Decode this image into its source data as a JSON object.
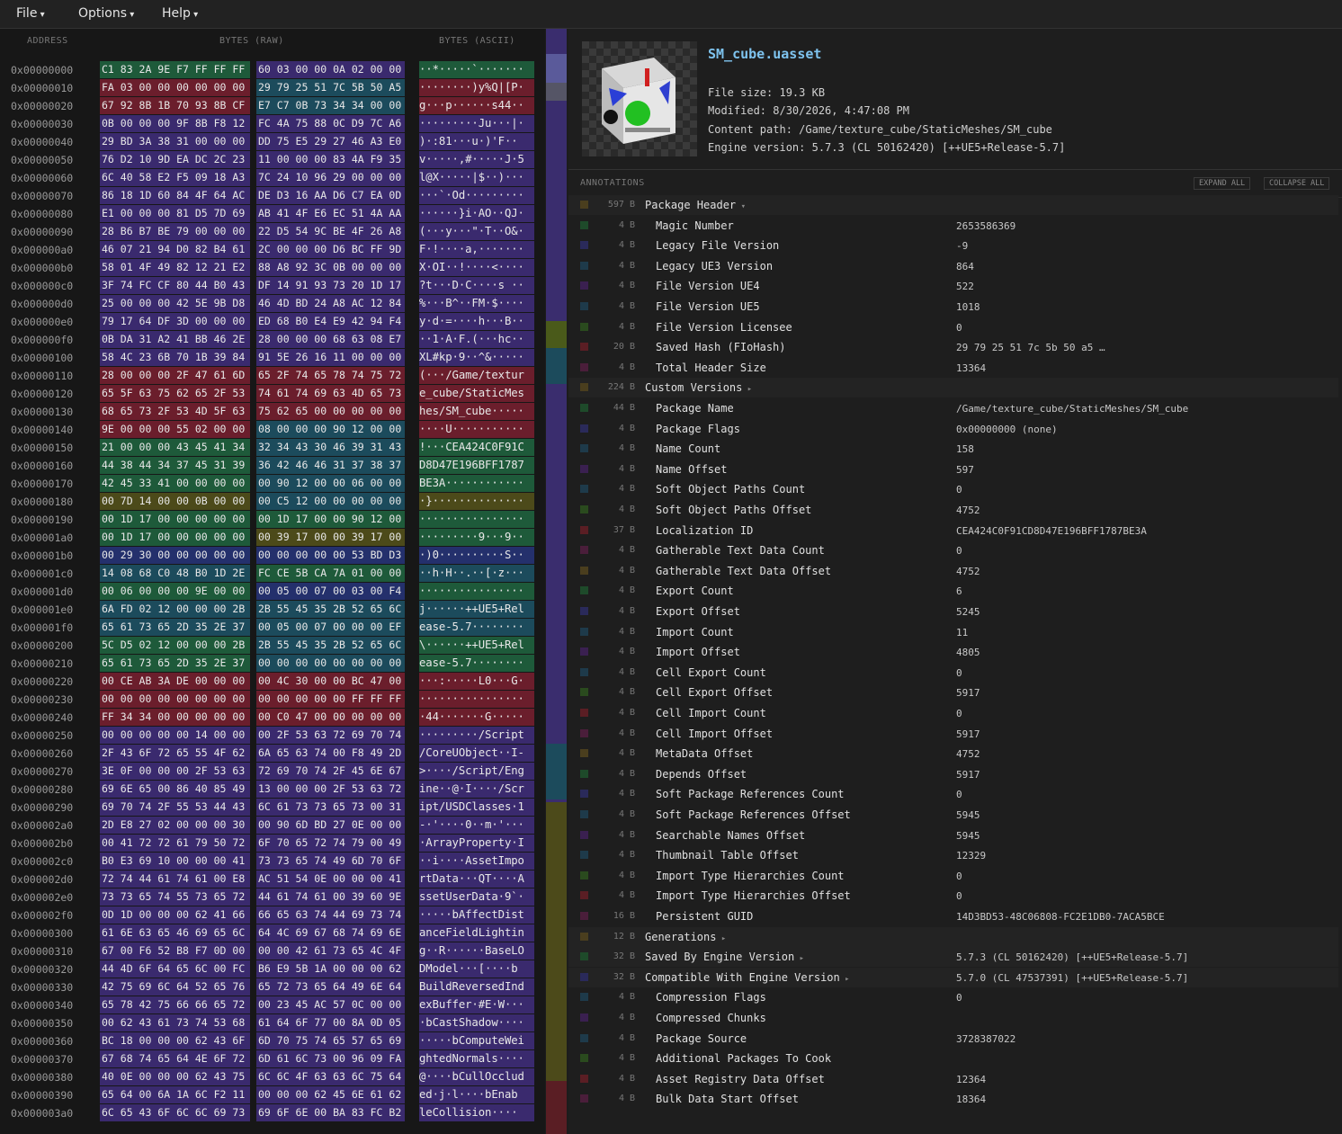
{
  "menu": [
    "File",
    "Options",
    "Help"
  ],
  "hex": {
    "headers": [
      "ADDRESS",
      "BYTES (RAW)",
      "BYTES (ASCII)"
    ],
    "rows": [
      [
        "0x00000000",
        "C1 83 2A 9E F7 FF FF FF",
        "60 03 00 00 0A 02 00 00",
        "··*·····`·······"
      ],
      [
        "0x00000010",
        "FA 03 00 00 00 00 00 00",
        "29 79 25 51 7C 5B 50 A5",
        "········)y%Q|[P·"
      ],
      [
        "0x00000020",
        "67 92 8B 1B 70 93 8B CF",
        "E7 C7 0B 73 34 34 00 00",
        "g···p······s44··"
      ],
      [
        "0x00000030",
        "0B 00 00 00 9F 8B F8 12",
        "FC 4A 75 88 0C D9 7C A6",
        "·········Ju···|·"
      ],
      [
        "0x00000040",
        "29 BD 3A 38 31 00 00 00",
        "DD 75 E5 29 27 46 A3 E0",
        ")·:81···u·)'F··"
      ],
      [
        "0x00000050",
        "76 D2 10 9D EA DC 2C 23",
        "11 00 00 00 83 4A F9 35",
        "v·····,#·····J·5"
      ],
      [
        "0x00000060",
        "6C 40 58 E2 F5 09 18 A3",
        "7C 24 10 96 29 00 00 00",
        "l@X·····|$··)···"
      ],
      [
        "0x00000070",
        "86 18 1D 60 84 4F 64 AC",
        "DE D3 16 AA D6 C7 EA 0D",
        "···`·Od·········"
      ],
      [
        "0x00000080",
        "E1 00 00 00 81 D5 7D 69",
        "AB 41 4F E6 EC 51 4A AA",
        "······}i·AO··QJ·"
      ],
      [
        "0x00000090",
        "28 B6 B7 BE 79 00 00 00",
        "22 D5 54 9C BE 4F 26 A8",
        "(···y···\"·T··O&·"
      ],
      [
        "0x000000a0",
        "46 07 21 94 D0 82 B4 61",
        "2C 00 00 00 D6 BC FF 9D",
        "F·!····a,·······"
      ],
      [
        "0x000000b0",
        "58 01 4F 49 82 12 21 E2",
        "88 A8 92 3C 0B 00 00 00",
        "X·OI··!····<····"
      ],
      [
        "0x000000c0",
        "3F 74 FC CF 80 44 B0 43",
        "DF 14 91 93 73 20 1D 17",
        "?t···D·C····s ··"
      ],
      [
        "0x000000d0",
        "25 00 00 00 42 5E 9B D8",
        "46 4D BD 24 A8 AC 12 84",
        "%···B^··FM·$····"
      ],
      [
        "0x000000e0",
        "79 17 64 DF 3D 00 00 00",
        "ED 68 B0 E4 E9 42 94 F4",
        "y·d·=····h···B··"
      ],
      [
        "0x000000f0",
        "0B DA 31 A2 41 BB 46 2E",
        "28 00 00 00 68 63 08 E7",
        "··1·A·F.(···hc··"
      ],
      [
        "0x00000100",
        "58 4C 23 6B 70 1B 39 84",
        "91 5E 26 16 11 00 00 00",
        "XL#kp·9··^&·····"
      ],
      [
        "0x00000110",
        "28 00 00 00 2F 47 61 6D",
        "65 2F 74 65 78 74 75 72",
        "(···/Game/textur"
      ],
      [
        "0x00000120",
        "65 5F 63 75 62 65 2F 53",
        "74 61 74 69 63 4D 65 73",
        "e_cube/StaticMes"
      ],
      [
        "0x00000130",
        "68 65 73 2F 53 4D 5F 63",
        "75 62 65 00 00 00 00 00",
        "hes/SM_cube·····"
      ],
      [
        "0x00000140",
        "9E 00 00 00 55 02 00 00",
        "08 00 00 00 90 12 00 00",
        "····U···········"
      ],
      [
        "0x00000150",
        "21 00 00 00 43 45 41 34",
        "32 34 43 30 46 39 31 43",
        "!···CEA424C0F91C"
      ],
      [
        "0x00000160",
        "44 38 44 34 37 45 31 39",
        "36 42 46 46 31 37 38 37",
        "D8D47E196BFF1787"
      ],
      [
        "0x00000170",
        "42 45 33 41 00 00 00 00",
        "00 90 12 00 00 06 00 00",
        "BE3A············"
      ],
      [
        "0x00000180",
        "00 7D 14 00 00 0B 00 00",
        "00 C5 12 00 00 00 00 00",
        "·}··············"
      ],
      [
        "0x00000190",
        "00 1D 17 00 00 00 00 00",
        "00 1D 17 00 00 90 12 00",
        "················"
      ],
      [
        "0x000001a0",
        "00 1D 17 00 00 00 00 00",
        "00 39 17 00 00 39 17 00",
        "·········9···9··"
      ],
      [
        "0x000001b0",
        "00 29 30 00 00 00 00 00",
        "00 00 00 00 00 53 BD D3",
        "·)0··········S··"
      ],
      [
        "0x000001c0",
        "14 08 68 C0 48 B0 1D 2E",
        "FC CE 5B CA 7A 01 00 00",
        "··h·H··.··[·z···"
      ],
      [
        "0x000001d0",
        "00 06 00 00 00 9E 00 00",
        "00 05 00 07 00 03 00 F4",
        "················"
      ],
      [
        "0x000001e0",
        "6A FD 02 12 00 00 00 2B",
        "2B 55 45 35 2B 52 65 6C",
        "j······++UE5+Rel"
      ],
      [
        "0x000001f0",
        "65 61 73 65 2D 35 2E 37",
        "00 05 00 07 00 00 00 EF",
        "ease-5.7········"
      ],
      [
        "0x00000200",
        "5C D5 02 12 00 00 00 2B",
        "2B 55 45 35 2B 52 65 6C",
        "\\······++UE5+Rel"
      ],
      [
        "0x00000210",
        "65 61 73 65 2D 35 2E 37",
        "00 00 00 00 00 00 00 00",
        "ease-5.7········"
      ],
      [
        "0x00000220",
        "00 CE AB 3A DE 00 00 00",
        "00 4C 30 00 00 BC 47 00",
        "···:·····L0···G·"
      ],
      [
        "0x00000230",
        "00 00 00 00 00 00 00 00",
        "00 00 00 00 00 FF FF FF",
        "················"
      ],
      [
        "0x00000240",
        "FF 34 34 00 00 00 00 00",
        "00 C0 47 00 00 00 00 00",
        "·44·······G·····"
      ],
      [
        "0x00000250",
        "00 00 00 00 00 14 00 00",
        "00 2F 53 63 72 69 70 74",
        "·········/Script"
      ],
      [
        "0x00000260",
        "2F 43 6F 72 65 55 4F 62",
        "6A 65 63 74 00 F8 49 2D",
        "/CoreUObject··I-"
      ],
      [
        "0x00000270",
        "3E 0F 00 00 00 2F 53 63",
        "72 69 70 74 2F 45 6E 67",
        ">····/Script/Eng"
      ],
      [
        "0x00000280",
        "69 6E 65 00 86 40 85 49",
        "13 00 00 00 2F 53 63 72",
        "ine··@·I····/Scr"
      ],
      [
        "0x00000290",
        "69 70 74 2F 55 53 44 43",
        "6C 61 73 73 65 73 00 31",
        "ipt/USDClasses·1"
      ],
      [
        "0x000002a0",
        "2D E8 27 02 00 00 00 30",
        "00 90 6D BD 27 0E 00 00",
        "-·'····0··m·'···"
      ],
      [
        "0x000002b0",
        "00 41 72 72 61 79 50 72",
        "6F 70 65 72 74 79 00 49",
        "·ArrayProperty·I"
      ],
      [
        "0x000002c0",
        "B0 E3 69 10 00 00 00 41",
        "73 73 65 74 49 6D 70 6F",
        "··i····AssetImpo"
      ],
      [
        "0x000002d0",
        "72 74 44 61 74 61 00 E8",
        "AC 51 54 0E 00 00 00 41",
        "rtData···QT····A"
      ],
      [
        "0x000002e0",
        "73 73 65 74 55 73 65 72",
        "44 61 74 61 00 39 60 9E",
        "ssetUserData·9`·"
      ],
      [
        "0x000002f0",
        "0D 1D 00 00 00 62 41 66",
        "66 65 63 74 44 69 73 74",
        "·····bAffectDist"
      ],
      [
        "0x00000300",
        "61 6E 63 65 46 69 65 6C",
        "64 4C 69 67 68 74 69 6E",
        "anceFieldLightin"
      ],
      [
        "0x00000310",
        "67 00 F6 52 B8 F7 0D 00",
        "00 00 42 61 73 65 4C 4F",
        "g··R······BaseLO"
      ],
      [
        "0x00000320",
        "44 4D 6F 64 65 6C 00 FC",
        "B6 E9 5B 1A 00 00 00 62",
        "DModel···[····b"
      ],
      [
        "0x00000330",
        "42 75 69 6C 64 52 65 76",
        "65 72 73 65 64 49 6E 64",
        "BuildReversedInd"
      ],
      [
        "0x00000340",
        "65 78 42 75 66 66 65 72",
        "00 23 45 AC 57 0C 00 00",
        "exBuffer·#E·W···"
      ],
      [
        "0x00000350",
        "00 62 43 61 73 74 53 68",
        "61 64 6F 77 00 8A 0D 05",
        "·bCastShadow····"
      ],
      [
        "0x00000360",
        "BC 18 00 00 00 62 43 6F",
        "6D 70 75 74 65 57 65 69",
        "·····bComputeWei"
      ],
      [
        "0x00000370",
        "67 68 74 65 64 4E 6F 72",
        "6D 61 6C 73 00 96 09 FA",
        "ghtedNormals····"
      ],
      [
        "0x00000380",
        "40 0E 00 00 00 62 43 75",
        "6C 6C 4F 63 63 6C 75 64",
        "@····bCullOcclud"
      ],
      [
        "0x00000390",
        "65 64 00 6A 1A 6C F2 11",
        "00 00 00 62 45 6E 61 62",
        "ed·j·l····bEnab"
      ],
      [
        "0x000003a0",
        "6C 65 43 6F 6C 6C 69 73",
        "69 6F 6E 00 BA 83 FC B2",
        "leCollision····"
      ]
    ]
  },
  "file": {
    "name": "SM_cube.uasset",
    "info": [
      "File size: 19.3 KB",
      "Modified: 8/30/2026, 4:47:08 PM",
      "Content path: /Game/texture_cube/StaticMeshes/SM_cube",
      "Engine version: 5.7.3 (CL 50162420) [++UE5+Release-5.7]"
    ]
  },
  "annotations": {
    "title": "ANNOTATIONS",
    "buttons": [
      "EXPAND ALL",
      "COLLAPSE ALL"
    ],
    "rows": [
      {
        "size": "597 B",
        "name": "Package Header",
        "toggle": "open"
      },
      {
        "size": "4 B",
        "name": "Magic Number",
        "value": "2653586369"
      },
      {
        "size": "4 B",
        "name": "Legacy File Version",
        "value": "-9"
      },
      {
        "size": "4 B",
        "name": "Legacy UE3 Version",
        "value": "864"
      },
      {
        "size": "4 B",
        "name": "File Version UE4",
        "value": "522"
      },
      {
        "size": "4 B",
        "name": "File Version UE5",
        "value": "1018"
      },
      {
        "size": "4 B",
        "name": "File Version Licensee",
        "value": "0"
      },
      {
        "size": "20 B",
        "name": "Saved Hash (FIoHash)",
        "value": "29 79 25 51 7c 5b 50 a5 …"
      },
      {
        "size": "4 B",
        "name": "Total Header Size",
        "value": "13364"
      },
      {
        "size": "224 B",
        "name": "Custom Versions",
        "toggle": "closed"
      },
      {
        "size": "44 B",
        "name": "Package Name",
        "value": "/Game/texture_cube/StaticMeshes/SM_cube"
      },
      {
        "size": "4 B",
        "name": "Package Flags",
        "value": "0x00000000 (none)"
      },
      {
        "size": "4 B",
        "name": "Name Count",
        "value": "158"
      },
      {
        "size": "4 B",
        "name": "Name Offset",
        "value": "597"
      },
      {
        "size": "4 B",
        "name": "Soft Object Paths Count",
        "value": "0"
      },
      {
        "size": "4 B",
        "name": "Soft Object Paths Offset",
        "value": "4752"
      },
      {
        "size": "37 B",
        "name": "Localization ID",
        "value": "CEA424C0F91CD8D47E196BFF1787BE3A"
      },
      {
        "size": "4 B",
        "name": "Gatherable Text Data Count",
        "value": "0"
      },
      {
        "size": "4 B",
        "name": "Gatherable Text Data Offset",
        "value": "4752"
      },
      {
        "size": "4 B",
        "name": "Export Count",
        "value": "6"
      },
      {
        "size": "4 B",
        "name": "Export Offset",
        "value": "5245"
      },
      {
        "size": "4 B",
        "name": "Import Count",
        "value": "11"
      },
      {
        "size": "4 B",
        "name": "Import Offset",
        "value": "4805"
      },
      {
        "size": "4 B",
        "name": "Cell Export Count",
        "value": "0"
      },
      {
        "size": "4 B",
        "name": "Cell Export Offset",
        "value": "5917"
      },
      {
        "size": "4 B",
        "name": "Cell Import Count",
        "value": "0"
      },
      {
        "size": "4 B",
        "name": "Cell Import Offset",
        "value": "5917"
      },
      {
        "size": "4 B",
        "name": "MetaData Offset",
        "value": "4752"
      },
      {
        "size": "4 B",
        "name": "Depends Offset",
        "value": "5917"
      },
      {
        "size": "4 B",
        "name": "Soft Package References Count",
        "value": "0"
      },
      {
        "size": "4 B",
        "name": "Soft Package References Offset",
        "value": "5945"
      },
      {
        "size": "4 B",
        "name": "Searchable Names Offset",
        "value": "5945"
      },
      {
        "size": "4 B",
        "name": "Thumbnail Table Offset",
        "value": "12329"
      },
      {
        "size": "4 B",
        "name": "Import Type Hierarchies Count",
        "value": "0"
      },
      {
        "size": "4 B",
        "name": "Import Type Hierarchies Offset",
        "value": "0"
      },
      {
        "size": "16 B",
        "name": "Persistent GUID",
        "value": "14D3BD53-48C06808-FC2E1DB0-7ACA5BCE"
      },
      {
        "size": "12 B",
        "name": "Generations",
        "toggle": "closed"
      },
      {
        "size": "32 B",
        "name": "Saved By Engine Version",
        "toggle": "closed",
        "value": "5.7.3 (CL 50162420) [++UE5+Release-5.7]"
      },
      {
        "size": "32 B",
        "name": "Compatible With Engine Version",
        "toggle": "closed",
        "value": "5.7.0 (CL 47537391) [++UE5+Release-5.7]"
      },
      {
        "size": "4 B",
        "name": "Compression Flags",
        "value": "0"
      },
      {
        "size": "4 B",
        "name": "Compressed Chunks"
      },
      {
        "size": "4 B",
        "name": "Package Source",
        "value": "3728387022"
      },
      {
        "size": "4 B",
        "name": "Additional Packages To Cook"
      },
      {
        "size": "4 B",
        "name": "Asset Registry Data Offset",
        "value": "12364"
      },
      {
        "size": "4 B",
        "name": "Bulk Data Start Offset",
        "value": "18364"
      }
    ]
  }
}
